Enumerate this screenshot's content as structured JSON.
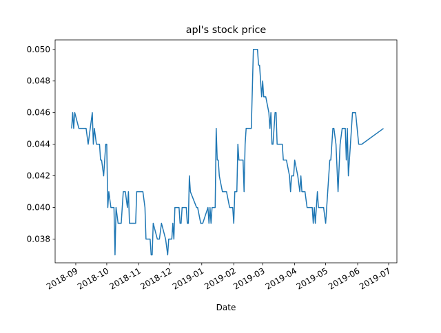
{
  "chart_data": {
    "type": "line",
    "title": "apl's stock price",
    "x_label": "Date",
    "x": [
      "2018-08-28",
      "2018-08-29",
      "2018-08-30",
      "2018-08-31",
      "2018-09-04",
      "2018-09-11",
      "2018-09-13",
      "2018-09-17",
      "2018-09-18",
      "2018-09-19",
      "2018-09-21",
      "2018-09-24",
      "2018-09-25",
      "2018-09-26",
      "2018-09-28",
      "2018-09-30",
      "2018-10-01",
      "2018-10-02",
      "2018-10-03",
      "2018-10-05",
      "2018-10-08",
      "2018-10-09",
      "2018-10-10",
      "2018-10-12",
      "2018-10-15",
      "2018-10-17",
      "2018-10-19",
      "2018-10-21",
      "2018-10-22",
      "2018-10-23",
      "2018-10-29",
      "2018-10-30",
      "2018-11-05",
      "2018-11-07",
      "2018-11-08",
      "2018-11-12",
      "2018-11-13",
      "2018-11-14",
      "2018-11-15",
      "2018-11-19",
      "2018-11-21",
      "2018-11-23",
      "2018-11-27",
      "2018-11-29",
      "2018-11-30",
      "2018-12-03",
      "2018-12-04",
      "2018-12-05",
      "2018-12-06",
      "2018-12-10",
      "2018-12-11",
      "2018-12-12",
      "2018-12-13",
      "2018-12-17",
      "2018-12-18",
      "2018-12-19",
      "2018-12-20",
      "2018-12-21",
      "2018-12-27",
      "2018-12-28",
      "2018-12-31",
      "2019-01-02",
      "2019-01-07",
      "2019-01-08",
      "2019-01-09",
      "2019-01-10",
      "2019-01-11",
      "2019-01-14",
      "2019-01-15",
      "2019-01-16",
      "2019-01-17",
      "2019-01-18",
      "2019-01-21",
      "2019-01-25",
      "2019-01-28",
      "2019-01-31",
      "2019-02-01",
      "2019-02-02",
      "2019-02-04",
      "2019-02-05",
      "2019-02-06",
      "2019-02-10",
      "2019-02-11",
      "2019-02-12",
      "2019-02-13",
      "2019-02-18",
      "2019-02-20",
      "2019-02-24",
      "2019-02-25",
      "2019-02-26",
      "2019-02-27",
      "2019-02-28",
      "2019-03-01",
      "2019-03-02",
      "2019-03-04",
      "2019-03-07",
      "2019-03-08",
      "2019-03-09",
      "2019-03-10",
      "2019-03-11",
      "2019-03-13",
      "2019-03-14",
      "2019-03-15",
      "2019-03-20",
      "2019-03-21",
      "2019-03-24",
      "2019-03-27",
      "2019-03-28",
      "2019-03-29",
      "2019-03-31",
      "2019-04-01",
      "2019-04-04",
      "2019-04-06",
      "2019-04-07",
      "2019-04-08",
      "2019-04-11",
      "2019-04-13",
      "2019-04-18",
      "2019-04-19",
      "2019-04-20",
      "2019-04-21",
      "2019-04-23",
      "2019-04-24",
      "2019-04-29",
      "2019-05-01",
      "2019-05-03",
      "2019-05-05",
      "2019-05-06",
      "2019-05-08",
      "2019-05-09",
      "2019-05-11",
      "2019-05-13",
      "2019-05-15",
      "2019-05-17",
      "2019-05-20",
      "2019-05-21",
      "2019-05-22",
      "2019-05-23",
      "2019-05-25",
      "2019-05-27",
      "2019-05-30",
      "2019-06-02",
      "2019-06-05",
      "2019-06-26"
    ],
    "series": [
      {
        "color": "#1f77b4",
        "values": [
          0.045,
          0.046,
          0.045,
          0.046,
          0.045,
          0.045,
          0.044,
          0.046,
          0.044,
          0.045,
          0.044,
          0.044,
          0.043,
          0.043,
          0.042,
          0.044,
          0.044,
          0.04,
          0.041,
          0.04,
          0.04,
          0.037,
          0.04,
          0.039,
          0.039,
          0.041,
          0.041,
          0.04,
          0.041,
          0.039,
          0.039,
          0.041,
          0.041,
          0.04,
          0.038,
          0.038,
          0.037,
          0.037,
          0.039,
          0.038,
          0.038,
          0.039,
          0.038,
          0.037,
          0.038,
          0.038,
          0.039,
          0.038,
          0.04,
          0.04,
          0.039,
          0.039,
          0.04,
          0.04,
          0.039,
          0.039,
          0.042,
          0.041,
          0.04,
          0.04,
          0.039,
          0.039,
          0.04,
          0.039,
          0.04,
          0.039,
          0.04,
          0.04,
          0.045,
          0.043,
          0.043,
          0.042,
          0.041,
          0.041,
          0.04,
          0.04,
          0.039,
          0.041,
          0.041,
          0.044,
          0.043,
          0.043,
          0.041,
          0.044,
          0.045,
          0.045,
          0.05,
          0.05,
          0.049,
          0.049,
          0.048,
          0.047,
          0.048,
          0.047,
          0.047,
          0.046,
          0.045,
          0.046,
          0.044,
          0.044,
          0.046,
          0.046,
          0.044,
          0.044,
          0.043,
          0.043,
          0.042,
          0.041,
          0.042,
          0.042,
          0.043,
          0.042,
          0.041,
          0.042,
          0.041,
          0.041,
          0.04,
          0.04,
          0.039,
          0.04,
          0.039,
          0.041,
          0.04,
          0.04,
          0.039,
          0.041,
          0.043,
          0.043,
          0.045,
          0.045,
          0.044,
          0.041,
          0.044,
          0.045,
          0.045,
          0.043,
          0.045,
          0.042,
          0.044,
          0.046,
          0.046,
          0.044,
          0.044,
          0.045
        ]
      }
    ],
    "xlim": [
      "2018-08-12",
      "2019-07-09"
    ],
    "xticks": [
      "2018-09",
      "2018-10",
      "2018-11",
      "2018-12",
      "2019-01",
      "2019-02",
      "2019-03",
      "2019-04",
      "2019-05",
      "2019-06",
      "2019-07"
    ],
    "ylim": [
      0.0365,
      0.0506
    ],
    "yticks": [
      {
        "value": 0.038,
        "label": "0.038"
      },
      {
        "value": 0.04,
        "label": "0.040"
      },
      {
        "value": 0.042,
        "label": "0.042"
      },
      {
        "value": 0.044,
        "label": "0.044"
      },
      {
        "value": 0.046,
        "label": "0.046"
      },
      {
        "value": 0.048,
        "label": "0.048"
      },
      {
        "value": 0.05,
        "label": "0.050"
      }
    ]
  }
}
